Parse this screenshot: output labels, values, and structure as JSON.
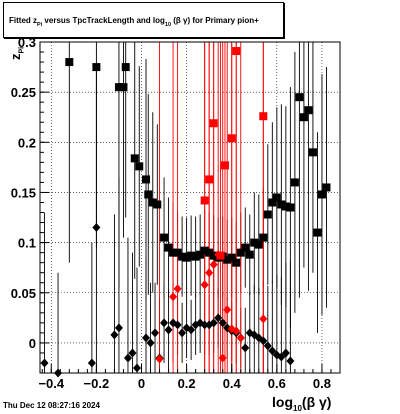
{
  "title": {
    "prefix": "Fitted  z",
    "sub1": "Pi",
    "middle": "  versus TpcTrackLength and log",
    "sub2": "10",
    "suffix": "(β  γ) for Primary pion+"
  },
  "timestamp": "Thu Dec 12 08:27:16 2024",
  "xlabel": {
    "main": "log",
    "sub": "10",
    "rest": "(β γ)"
  },
  "ylabel": {
    "main": "z",
    "sub": "Pi"
  },
  "chart_data": {
    "type": "scatter",
    "xlim": [
      -0.45,
      0.88
    ],
    "ylim": [
      -0.03,
      0.3
    ],
    "xticks": [
      -0.4,
      -0.2,
      0,
      0.2,
      0.4,
      0.6,
      0.8
    ],
    "xtick_labels": [
      "−0.4",
      "−0.2",
      "0",
      "0.2",
      "0.4",
      "0.6",
      "0.8"
    ],
    "yticks": [
      0,
      0.05,
      0.1,
      0.15,
      0.2,
      0.25,
      0.3
    ],
    "ytick_labels": [
      "0",
      "0.05",
      "0.1",
      "0.15",
      "0.2",
      "0.25",
      "0.3"
    ],
    "grid": true,
    "colors": {
      "black": "#000000",
      "red": "#ff0000"
    },
    "series": [
      {
        "marker": "square",
        "color": "#000000",
        "x": [
          -0.32,
          -0.2,
          -0.1,
          -0.08,
          -0.07,
          -0.03,
          -0.01,
          0.02,
          0.03,
          0.05,
          0.07,
          0.1,
          0.12,
          0.14,
          0.16,
          0.18,
          0.2,
          0.22,
          0.24,
          0.26,
          0.28,
          0.3,
          0.32,
          0.34,
          0.36,
          0.38,
          0.4,
          0.42,
          0.44,
          0.46,
          0.48,
          0.5,
          0.52,
          0.54,
          0.56,
          0.58,
          0.6,
          0.62,
          0.64,
          0.66,
          0.68,
          0.7,
          0.72,
          0.74,
          0.76,
          0.78,
          0.8,
          0.82
        ],
        "y": [
          0.28,
          0.275,
          0.255,
          0.255,
          0.275,
          0.184,
          0.176,
          0.163,
          0.148,
          0.14,
          0.138,
          0.105,
          0.095,
          0.09,
          0.09,
          0.086,
          0.085,
          0.087,
          0.086,
          0.088,
          0.092,
          0.09,
          0.087,
          0.085,
          0.086,
          0.083,
          0.085,
          0.08,
          0.09,
          0.095,
          0.088,
          0.1,
          0.098,
          0.105,
          0.128,
          0.14,
          0.145,
          0.138,
          0.136,
          0.135,
          0.16,
          0.245,
          0.225,
          0.232,
          0.19,
          0.11,
          0.148,
          0.155
        ],
        "err": [
          0.2,
          0.18,
          0.2,
          0.15,
          0.15,
          0.12,
          0.1,
          0.12,
          0.1,
          0.09,
          0.08,
          0.06,
          0.05,
          0.05,
          0.04,
          0.04,
          0.04,
          0.04,
          0.04,
          0.04,
          0.04,
          0.04,
          0.04,
          0.04,
          0.04,
          0.04,
          0.04,
          0.04,
          0.04,
          0.04,
          0.04,
          0.05,
          0.05,
          0.05,
          0.07,
          0.08,
          0.09,
          0.1,
          0.1,
          0.12,
          0.13,
          0.2,
          0.15,
          0.18,
          0.12,
          0.1,
          0.12,
          0.12
        ]
      },
      {
        "marker": "diamond",
        "color": "#000000",
        "x": [
          -0.43,
          -0.37,
          -0.22,
          -0.2,
          -0.12,
          -0.1,
          -0.06,
          -0.04,
          -0.02,
          0.02,
          0.04,
          0.06,
          0.08,
          0.1,
          0.12,
          0.14,
          0.16,
          0.18,
          0.2,
          0.22,
          0.24,
          0.26,
          0.28,
          0.3,
          0.32,
          0.34,
          0.36,
          0.38,
          0.4,
          0.42,
          0.44,
          0.46,
          0.48,
          0.5,
          0.52,
          0.54,
          0.56,
          0.58,
          0.6,
          0.62,
          0.64,
          0.66
        ],
        "y": [
          -0.02,
          -0.03,
          -0.02,
          0.115,
          0.008,
          0.015,
          -0.015,
          -0.01,
          -0.025,
          0.005,
          0.0,
          0.01,
          -0.015,
          0.02,
          0.013,
          0.02,
          0.018,
          0.01,
          0.015,
          0.013,
          0.018,
          0.02,
          0.018,
          0.018,
          0.02,
          0.025,
          0.02,
          0.015,
          0.012,
          0.01,
          0.005,
          -0.005,
          0.01,
          0.008,
          0.005,
          0.002,
          -0.003,
          -0.008,
          -0.012,
          -0.014,
          -0.01,
          -0.018
        ],
        "err": [
          0.15,
          0.1,
          0.12,
          0.16,
          0.12,
          0.15,
          0.12,
          0.1,
          0.1,
          0.08,
          0.06,
          0.05,
          0.06,
          0.04,
          0.04,
          0.04,
          0.03,
          0.03,
          0.03,
          0.03,
          0.03,
          0.03,
          0.03,
          0.03,
          0.03,
          0.03,
          0.03,
          0.03,
          0.03,
          0.03,
          0.03,
          0.04,
          0.04,
          0.05,
          0.05,
          0.06,
          0.06,
          0.07,
          0.08,
          0.08,
          0.09,
          0.1
        ]
      },
      {
        "marker": "square",
        "color": "#ff0000",
        "x": [
          0.28,
          0.3,
          0.32,
          0.35,
          0.37,
          0.4,
          0.42,
          0.54
        ],
        "y": [
          0.142,
          0.163,
          0.219,
          0.087,
          0.177,
          0.204,
          0.291,
          0.226
        ],
        "err": [
          0.35,
          0.35,
          0.35,
          0.35,
          0.35,
          0.35,
          0.35,
          0.35
        ]
      },
      {
        "marker": "diamond",
        "color": "#ff0000",
        "x": [
          0.08,
          0.14,
          0.16,
          0.28,
          0.3,
          0.32,
          0.34,
          0.36,
          0.38,
          0.4,
          0.42,
          0.44,
          0.54
        ],
        "y": [
          -0.016,
          0.046,
          0.054,
          0.058,
          0.07,
          0.078,
          0.088,
          -0.015,
          0.033,
          0.014,
          0.012,
          0.005,
          0.024
        ],
        "err": [
          0.35,
          0.35,
          0.35,
          0.35,
          0.35,
          0.35,
          0.35,
          0.35,
          0.35,
          0.35,
          0.35,
          0.35,
          0.35
        ]
      }
    ]
  }
}
